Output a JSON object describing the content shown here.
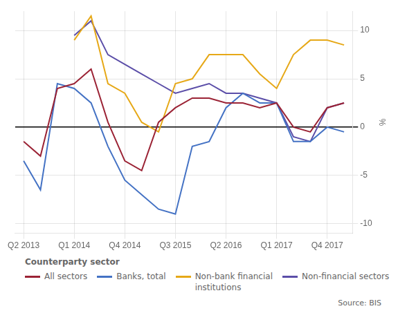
{
  "chart_data": {
    "type": "line",
    "ylabel": "%",
    "categories": [
      "Q2 2013",
      null,
      null,
      "Q1 2014",
      null,
      null,
      "Q4 2014",
      null,
      null,
      "Q3 2015",
      null,
      null,
      "Q2 2016",
      null,
      null,
      "Q1 2017",
      null,
      null,
      "Q4 2017",
      null
    ],
    "series": [
      {
        "name": "All sectors",
        "color": "#9b2335",
        "values": [
          -1.5,
          -3.0,
          4.0,
          4.5,
          6.0,
          0.5,
          -3.5,
          -4.5,
          0.5,
          2.0,
          3.0,
          3.0,
          2.5,
          2.5,
          2.0,
          2.5,
          0.0,
          -0.5,
          2.0,
          2.5
        ]
      },
      {
        "name": "Banks, total",
        "color": "#4472c4",
        "values": [
          -3.5,
          -6.5,
          4.5,
          4.0,
          2.5,
          -2.0,
          -5.5,
          -7.0,
          -8.5,
          -9.0,
          -2.0,
          -1.5,
          2.0,
          3.5,
          2.5,
          2.5,
          -1.5,
          -1.5,
          0.0,
          -0.5
        ]
      },
      {
        "name": "Non-bank financial\ninstitutions",
        "color": "#e6a817",
        "values": [
          null,
          null,
          null,
          9.0,
          11.5,
          4.5,
          3.5,
          0.5,
          -0.5,
          4.5,
          5.0,
          7.5,
          7.5,
          7.5,
          5.5,
          4.0,
          7.5,
          9.0,
          9.0,
          8.5
        ]
      },
      {
        "name": "Non-financial sectors",
        "color": "#5b4ea8",
        "values": [
          null,
          null,
          null,
          9.5,
          11.0,
          7.5,
          6.5,
          5.5,
          4.5,
          3.5,
          4.0,
          4.5,
          3.5,
          3.5,
          3.0,
          2.5,
          -1.0,
          -1.5,
          2.0,
          2.5
        ]
      }
    ],
    "ylim": [
      -11,
      12
    ],
    "yticks": [
      -10,
      -5,
      0,
      5,
      10
    ],
    "grid": true,
    "legend": "bottom",
    "annotations": [
      "Counterparty sector",
      "Source: BIS"
    ]
  }
}
